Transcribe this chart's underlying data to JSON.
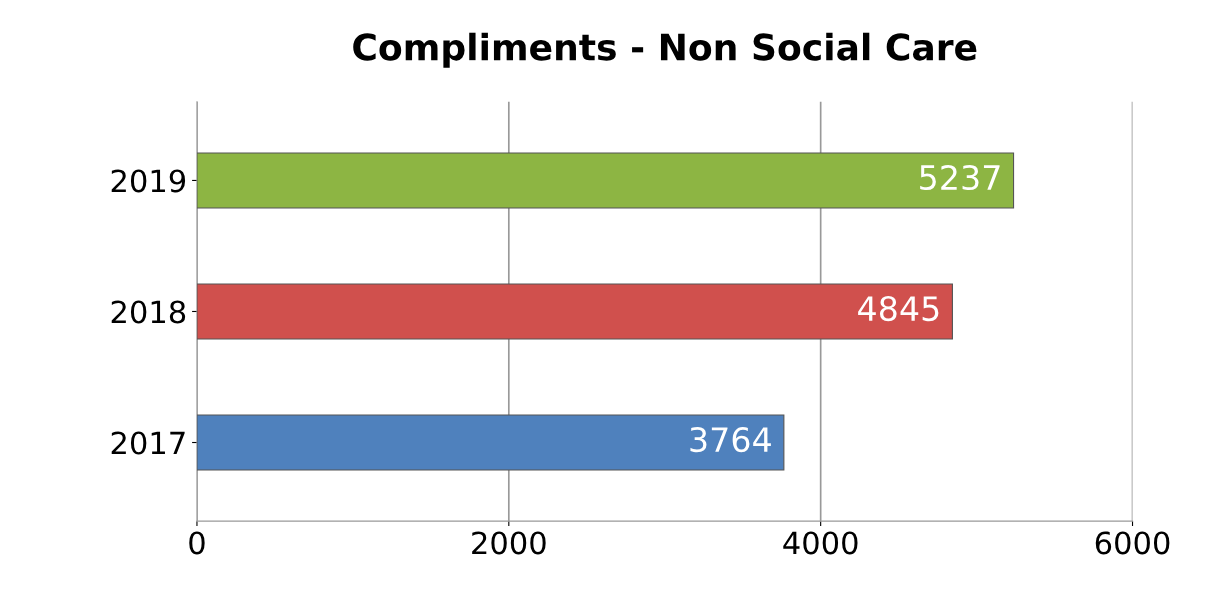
{
  "chart_data": {
    "type": "bar",
    "orientation": "horizontal",
    "title": "Compliments - Non Social Care",
    "categories": [
      "2019",
      "2018",
      "2017"
    ],
    "values": [
      5237,
      4845,
      3764
    ],
    "colors": [
      "#8db543",
      "#d0504d",
      "#4f81bd"
    ],
    "xlim": [
      0,
      6000
    ],
    "xticks": [
      0,
      2000,
      4000,
      6000
    ],
    "grid": "x",
    "data_labels": true
  }
}
